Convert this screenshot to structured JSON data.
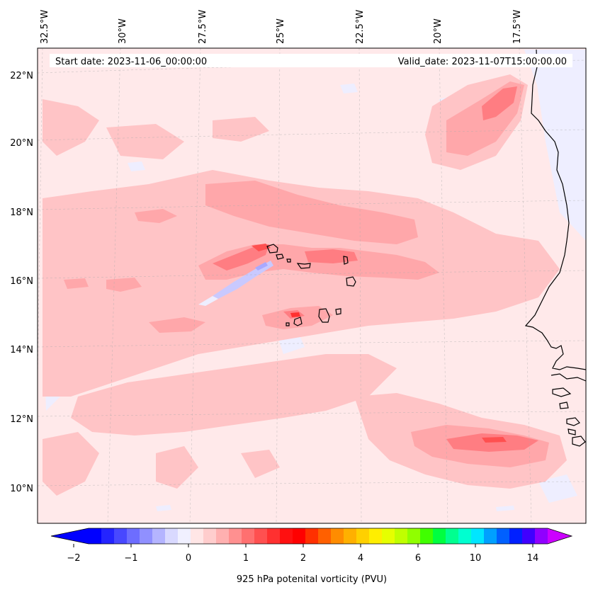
{
  "map": {
    "start_label": "Start date: 2023-11-06_00:00:00",
    "valid_label": "Valid_date: 2023-11-07T15:00:00.00",
    "lon_labels": [
      "32.5°W",
      "30°W",
      "27.5°W",
      "25°W",
      "22.5°W",
      "20°W",
      "17.5°W"
    ],
    "lat_labels": [
      "22°N",
      "20°N",
      "18°N",
      "16°N",
      "14°N",
      "12°N",
      "10°N"
    ],
    "colors": {
      "background": "#ffe9ea",
      "light_red": "#ffc4c6",
      "medium_red": "#ffa7aa",
      "strong_red": "#ff7d82",
      "light_blue": "#eeeeff",
      "blue": "#c9c9ff",
      "coast": "#000000"
    }
  },
  "colorbar": {
    "label": "925 hPa potenital vorticity (PVU)",
    "ticks": [
      "−2",
      "−1",
      "0",
      "1",
      "2",
      "4",
      "6",
      "10",
      "14"
    ],
    "colors": [
      "#0000ff",
      "#2424ff",
      "#4848ff",
      "#6d6dff",
      "#9090ff",
      "#b4b4ff",
      "#d9d9ff",
      "#f0f0ff",
      "#ffe6e6",
      "#ffcdcd",
      "#ffb0b0",
      "#ff9090",
      "#ff7070",
      "#ff5050",
      "#ff3030",
      "#ff1010",
      "#ff0000",
      "#ff3000",
      "#ff6000",
      "#ff8c00",
      "#ffb000",
      "#ffd000",
      "#ffee00",
      "#e6ff00",
      "#c0ff00",
      "#90ff00",
      "#40ff00",
      "#00ff40",
      "#00ff90",
      "#00ffd0",
      "#00e6ff",
      "#00a0ff",
      "#0060ff",
      "#0020ff",
      "#4000ff",
      "#9000ff"
    ],
    "min_color": "#0000ff",
    "max_color": "#cc00ff"
  }
}
